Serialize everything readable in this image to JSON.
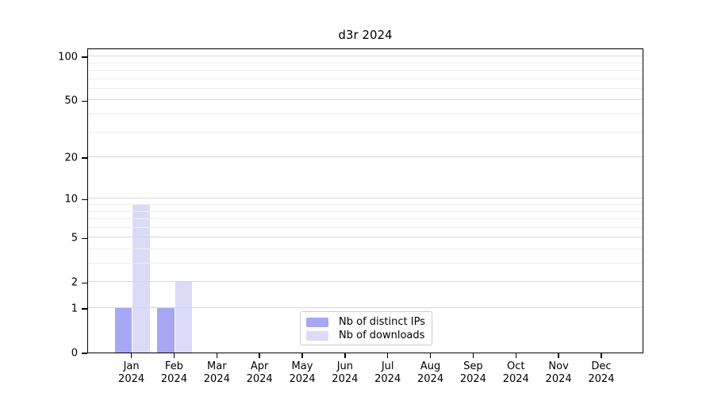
{
  "title": "d3r 2024",
  "chart_data": {
    "type": "bar",
    "title": "d3r 2024",
    "categories": [
      "Jan",
      "Feb",
      "Mar",
      "Apr",
      "May",
      "Jun",
      "Jul",
      "Aug",
      "Sep",
      "Oct",
      "Nov",
      "Dec"
    ],
    "category_year": "2024",
    "series": [
      {
        "name": "Nb of distinct IPs",
        "color": "#a7a7f3",
        "values": [
          1,
          1,
          0,
          0,
          0,
          0,
          0,
          0,
          0,
          0,
          0,
          0
        ]
      },
      {
        "name": "Nb of downloads",
        "color": "#dbdbf8",
        "values": [
          9,
          2,
          0,
          0,
          0,
          0,
          0,
          0,
          0,
          0,
          0,
          0
        ]
      }
    ],
    "yscale": "log10(value+1)",
    "ylim": [
      0,
      115
    ],
    "yticks": [
      0,
      1,
      2,
      5,
      10,
      20,
      50,
      100
    ],
    "minor_gridlines": [
      3,
      4,
      6,
      7,
      8,
      9,
      30,
      40,
      60,
      70,
      80,
      90
    ],
    "grid": "horizontal-only",
    "legend_position": "inside-bottom-center",
    "xlabel": "",
    "ylabel": ""
  },
  "colors": {
    "bar_distinct_ips": "#a7a7f3",
    "bar_downloads": "#dbdbf8",
    "grid_major": "#d7d7d7",
    "grid_minor": "#eeeeee",
    "axis": "#000000",
    "legend_border": "#cccccc",
    "background": "#ffffff",
    "text": "#000000"
  }
}
